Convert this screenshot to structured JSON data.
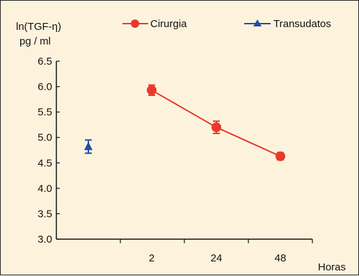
{
  "chart_data": {
    "type": "line",
    "ylabel_line1": "ln(TGF-η)",
    "ylabel_line2": "pg / ml",
    "xlabel": "Horas",
    "ylim": [
      3.0,
      6.5
    ],
    "y_ticks": [
      "3.0",
      "3.5",
      "4.0",
      "4.5",
      "5.0",
      "5.5",
      "6.0",
      "6.5"
    ],
    "x_ticks": [
      "",
      "2",
      "24",
      "48"
    ],
    "legend_position": "top",
    "series": [
      {
        "name": "Cirurgia",
        "color": "#e8392a",
        "marker": "circle",
        "x": [
          "2",
          "24",
          "48"
        ],
        "values": [
          5.93,
          5.2,
          4.63
        ],
        "error": [
          0.1,
          0.12,
          0.07
        ]
      },
      {
        "name": "Transudatos",
        "color": "#1e4ea8",
        "marker": "triangle",
        "x": [
          ""
        ],
        "values": [
          4.82
        ],
        "error": [
          0.13
        ]
      }
    ]
  }
}
